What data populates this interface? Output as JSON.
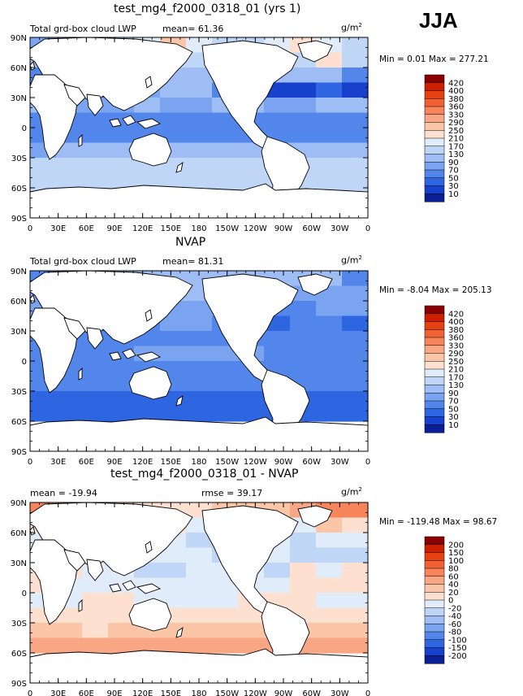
{
  "figure": {
    "season": "JJA",
    "units_base": "g/m",
    "units_exp": "2"
  },
  "chart_data": [
    {
      "type": "heatmap",
      "title": "test_mg4_f2000_0318_01 (yrs 1)",
      "left_label": "Total grd-box cloud LWP",
      "stat_text": "mean=  61.36",
      "minmax_text": "Min =    0.01 Max = 277.21",
      "min": 0.01,
      "max": 277.21,
      "mean": 61.36,
      "xlabels": [
        "0",
        "30E",
        "60E",
        "90E",
        "120E",
        "150E",
        "180",
        "150W",
        "120W",
        "90W",
        "60W",
        "30W",
        "0"
      ],
      "ylabels": [
        "90N",
        "60N",
        "30N",
        "0",
        "30S",
        "60S",
        "90S"
      ],
      "xlim": [
        0,
        360
      ],
      "ylim": [
        -90,
        90
      ],
      "colorbar_levels": [
        "420",
        "400",
        "380",
        "360",
        "330",
        "290",
        "250",
        "210",
        "170",
        "130",
        "90",
        "70",
        "50",
        "30",
        "10"
      ],
      "colorbar_colors": [
        "#8b0000",
        "#cc1f00",
        "#e64010",
        "#f26035",
        "#f7855c",
        "#f9a685",
        "#fbc5a8",
        "#fde0cf",
        "#e0ecfa",
        "#bfd6f7",
        "#9dbdf4",
        "#7aa4f0",
        "#5386ea",
        "#2d66e0",
        "#1740cc",
        "#0a1e96"
      ],
      "rows": [
        [
          70,
          110,
          110,
          130,
          170,
          250,
          170,
          130,
          130,
          170,
          210,
          170,
          130
        ],
        [
          90,
          90,
          90,
          130,
          170,
          130,
          130,
          130,
          90,
          90,
          130,
          210,
          130
        ],
        [
          50,
          50,
          50,
          50,
          90,
          90,
          90,
          90,
          90,
          90,
          90,
          90,
          50
        ],
        [
          10,
          30,
          30,
          50,
          70,
          90,
          90,
          50,
          30,
          10,
          10,
          30,
          10
        ],
        [
          90,
          70,
          70,
          70,
          90,
          70,
          70,
          90,
          90,
          70,
          70,
          90,
          90
        ],
        [
          50,
          50,
          50,
          50,
          50,
          50,
          50,
          50,
          50,
          50,
          50,
          50,
          50
        ],
        [
          50,
          50,
          50,
          50,
          50,
          50,
          50,
          50,
          50,
          50,
          50,
          50,
          50
        ],
        [
          70,
          90,
          90,
          90,
          90,
          90,
          90,
          90,
          90,
          90,
          90,
          90,
          90
        ],
        [
          130,
          130,
          130,
          130,
          130,
          130,
          130,
          130,
          130,
          130,
          130,
          130,
          130
        ],
        [
          130,
          130,
          130,
          130,
          130,
          130,
          130,
          130,
          130,
          130,
          130,
          130,
          130
        ],
        [
          130,
          130,
          130,
          130,
          130,
          130,
          130,
          130,
          130,
          130,
          130,
          130,
          130
        ],
        [
          null,
          null,
          null,
          null,
          null,
          null,
          null,
          null,
          null,
          null,
          null,
          null,
          null
        ]
      ]
    },
    {
      "type": "heatmap",
      "title": "NVAP",
      "left_label": "Total grd-box cloud LWP",
      "stat_text": "mean=  81.31",
      "minmax_text": "Min =  -8.04 Max = 205.13",
      "min": -8.04,
      "max": 205.13,
      "mean": 81.31,
      "xlabels": [
        "0",
        "30E",
        "60E",
        "90E",
        "120E",
        "150E",
        "180",
        "150W",
        "120W",
        "90W",
        "60W",
        "30W",
        "0"
      ],
      "ylabels": [
        "90N",
        "60N",
        "30N",
        "0",
        "30S",
        "60S",
        "90S"
      ],
      "xlim": [
        0,
        360
      ],
      "ylim": [
        -90,
        90
      ],
      "colorbar_levels": [
        "420",
        "400",
        "380",
        "360",
        "330",
        "290",
        "250",
        "210",
        "170",
        "130",
        "90",
        "70",
        "50",
        "30",
        "10"
      ],
      "colorbar_colors": [
        "#8b0000",
        "#cc1f00",
        "#e64010",
        "#f26035",
        "#f7855c",
        "#f9a685",
        "#fbc5a8",
        "#fde0cf",
        "#e0ecfa",
        "#bfd6f7",
        "#9dbdf4",
        "#7aa4f0",
        "#5386ea",
        "#2d66e0",
        "#1740cc",
        "#0a1e96"
      ],
      "rows": [
        [
          50,
          50,
          90,
          90,
          90,
          90,
          90,
          90,
          90,
          90,
          90,
          90,
          50
        ],
        [
          70,
          70,
          90,
          90,
          90,
          90,
          90,
          90,
          70,
          70,
          70,
          70,
          70
        ],
        [
          70,
          50,
          50,
          50,
          70,
          70,
          70,
          70,
          70,
          50,
          50,
          70,
          70
        ],
        [
          30,
          30,
          30,
          30,
          50,
          70,
          70,
          50,
          50,
          30,
          50,
          50,
          30
        ],
        [
          50,
          50,
          50,
          50,
          50,
          50,
          50,
          50,
          50,
          50,
          50,
          50,
          50
        ],
        [
          50,
          50,
          50,
          50,
          70,
          70,
          70,
          70,
          70,
          50,
          50,
          50,
          50
        ],
        [
          50,
          50,
          50,
          50,
          50,
          50,
          50,
          50,
          50,
          50,
          50,
          50,
          50
        ],
        [
          50,
          50,
          50,
          50,
          50,
          50,
          50,
          50,
          50,
          50,
          50,
          50,
          50
        ],
        [
          30,
          30,
          30,
          30,
          30,
          30,
          30,
          30,
          30,
          30,
          30,
          30,
          30
        ],
        [
          30,
          30,
          30,
          30,
          30,
          30,
          30,
          30,
          30,
          30,
          30,
          30,
          30
        ],
        [
          null,
          null,
          null,
          null,
          null,
          null,
          null,
          null,
          null,
          null,
          null,
          null,
          null
        ],
        [
          null,
          null,
          null,
          null,
          null,
          null,
          null,
          null,
          null,
          null,
          null,
          null,
          null
        ]
      ]
    },
    {
      "type": "heatmap",
      "title": "test_mg4_f2000_0318_01 - NVAP",
      "left_label": "mean = -19.94",
      "stat_text": "rmse =  39.17",
      "minmax_text": "Min = -119.48 Max =  98.67",
      "min": -119.48,
      "max": 98.67,
      "mean": -19.94,
      "rmse": 39.17,
      "xlabels": [
        "0",
        "30E",
        "60E",
        "90E",
        "120E",
        "150E",
        "180",
        "150W",
        "120W",
        "90W",
        "60W",
        "30W",
        "0"
      ],
      "ylabels": [
        "90N",
        "60N",
        "30N",
        "0",
        "30S",
        "60S",
        "90S"
      ],
      "xlim": [
        0,
        360
      ],
      "ylim": [
        -90,
        90
      ],
      "colorbar_levels": [
        "200",
        "150",
        "100",
        "80",
        "60",
        "40",
        "20",
        "0",
        "-20",
        "-40",
        "-60",
        "-80",
        "-100",
        "-150",
        "-200"
      ],
      "colorbar_colors": [
        "#8b0000",
        "#cc1f00",
        "#e64010",
        "#f26035",
        "#f7855c",
        "#f9a685",
        "#fbc5a8",
        "#fde0cf",
        "#e0ecfa",
        "#bfd6f7",
        "#9dbdf4",
        "#7aa4f0",
        "#5386ea",
        "#2d66e0",
        "#1740cc",
        "#0a1e96"
      ],
      "rows": [
        [
          60,
          40,
          40,
          20,
          0,
          0,
          0,
          20,
          20,
          20,
          40,
          60,
          60
        ],
        [
          0,
          -20,
          0,
          -20,
          -20,
          0,
          -20,
          -20,
          -20,
          -20,
          -20,
          20,
          0
        ],
        [
          -20,
          -40,
          -40,
          -40,
          -20,
          -20,
          -40,
          -40,
          -40,
          -20,
          -40,
          -20,
          -20
        ],
        [
          -40,
          -20,
          -20,
          -20,
          -20,
          -20,
          -20,
          -40,
          -40,
          -20,
          -40,
          -40,
          -40
        ],
        [
          0,
          0,
          -20,
          -20,
          -40,
          -40,
          -20,
          -20,
          -20,
          -40,
          0,
          -20,
          0
        ],
        [
          0,
          -20,
          -20,
          -20,
          -20,
          -20,
          -20,
          -20,
          -20,
          -20,
          0,
          0,
          0
        ],
        [
          -20,
          -20,
          0,
          0,
          -20,
          -20,
          -20,
          -20,
          0,
          0,
          0,
          -20,
          -20
        ],
        [
          0,
          0,
          0,
          0,
          0,
          0,
          0,
          0,
          0,
          0,
          0,
          0,
          0
        ],
        [
          20,
          20,
          0,
          20,
          20,
          20,
          20,
          20,
          20,
          20,
          20,
          20,
          20
        ],
        [
          40,
          40,
          40,
          40,
          40,
          40,
          40,
          40,
          40,
          40,
          40,
          40,
          40
        ],
        [
          null,
          null,
          null,
          null,
          null,
          null,
          null,
          null,
          null,
          null,
          null,
          null,
          null
        ],
        [
          null,
          null,
          null,
          null,
          null,
          null,
          null,
          null,
          null,
          null,
          null,
          null,
          null
        ]
      ]
    }
  ]
}
